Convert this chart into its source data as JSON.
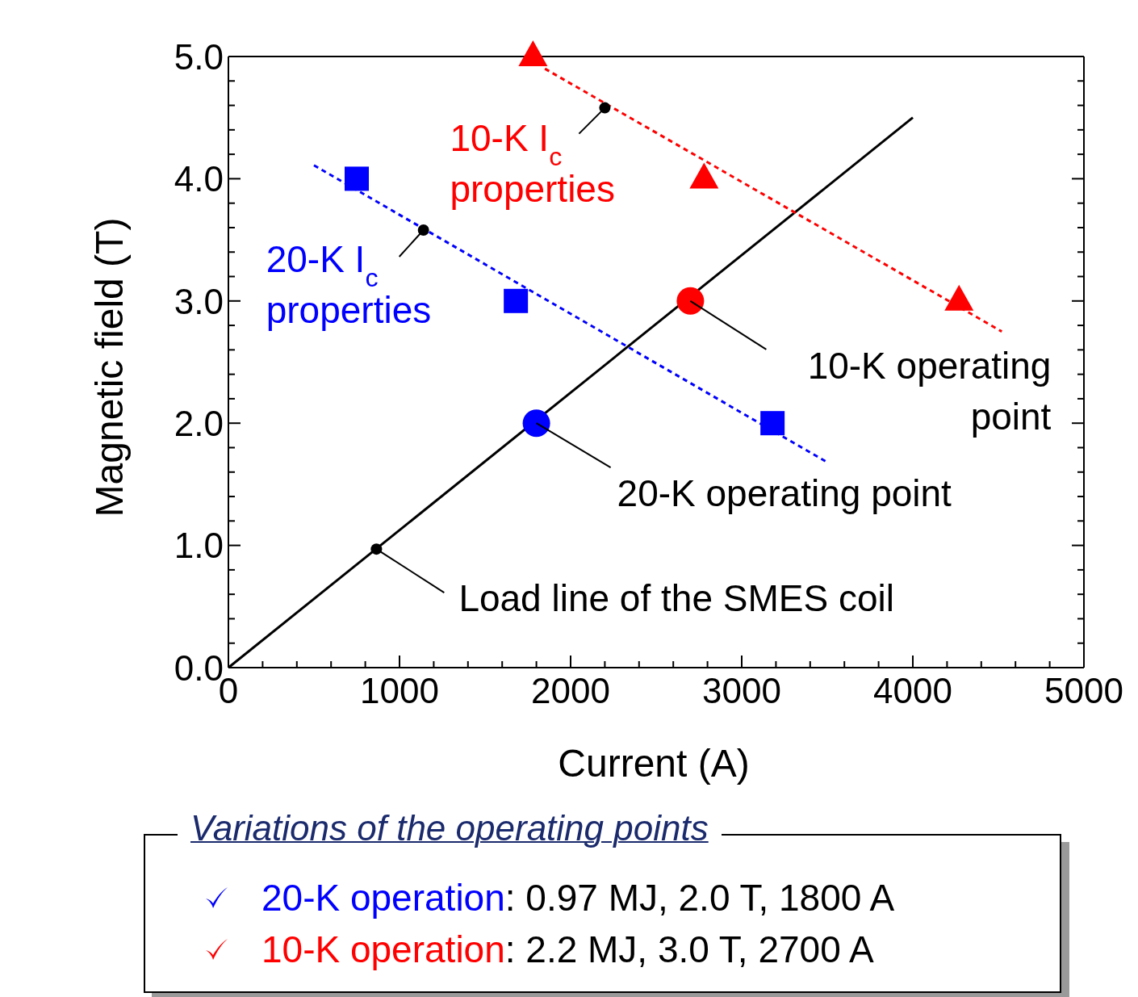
{
  "chart_data": {
    "type": "scatter",
    "xlabel": "Current (A)",
    "ylabel": "Magnetic field (T)",
    "xlim": [
      0,
      5000
    ],
    "ylim": [
      0,
      5
    ],
    "xticks": [
      0,
      {
        "value": 200,
        "label": null
      },
      {
        "value": 400,
        "label": null
      },
      {
        "value": 600,
        "label": null
      },
      {
        "value": 800,
        "label": null
      },
      1000,
      {
        "value": 1200,
        "label": null
      },
      {
        "value": 1400,
        "label": null
      },
      {
        "value": 1600,
        "label": null
      },
      {
        "value": 1800,
        "label": null
      },
      2000,
      {
        "value": 2200,
        "label": null
      },
      {
        "value": 2400,
        "label": null
      },
      {
        "value": 2600,
        "label": null
      },
      {
        "value": 2800,
        "label": null
      },
      3000,
      {
        "value": 3200,
        "label": null
      },
      {
        "value": 3400,
        "label": null
      },
      {
        "value": 3600,
        "label": null
      },
      {
        "value": 3800,
        "label": null
      },
      4000,
      {
        "value": 4200,
        "label": null
      },
      {
        "value": 4400,
        "label": null
      },
      {
        "value": 4600,
        "label": null
      },
      {
        "value": 4800,
        "label": null
      },
      5000
    ],
    "yticks": [
      {
        "value": 0,
        "label": "0.0"
      },
      {
        "value": 0.2,
        "label": null
      },
      {
        "value": 0.4,
        "label": null
      },
      {
        "value": 0.6,
        "label": null
      },
      {
        "value": 0.8,
        "label": null
      },
      {
        "value": 1,
        "label": "1.0"
      },
      {
        "value": 1.2,
        "label": null
      },
      {
        "value": 1.4,
        "label": null
      },
      {
        "value": 1.6,
        "label": null
      },
      {
        "value": 1.8,
        "label": null
      },
      {
        "value": 2,
        "label": "2.0"
      },
      {
        "value": 2.2,
        "label": null
      },
      {
        "value": 2.4,
        "label": null
      },
      {
        "value": 2.6,
        "label": null
      },
      {
        "value": 2.8,
        "label": null
      },
      {
        "value": 3,
        "label": "3.0"
      },
      {
        "value": 3.2,
        "label": null
      },
      {
        "value": 3.4,
        "label": null
      },
      {
        "value": 3.6,
        "label": null
      },
      {
        "value": 3.8,
        "label": null
      },
      {
        "value": 4,
        "label": "4.0"
      },
      {
        "value": 4.2,
        "label": null
      },
      {
        "value": 4.4,
        "label": null
      },
      {
        "value": 4.6,
        "label": null
      },
      {
        "value": 4.8,
        "label": null
      },
      {
        "value": 5,
        "label": "5.0"
      }
    ],
    "series": [
      {
        "type": "line",
        "color": "#000000",
        "x": [
          0,
          4000
        ],
        "values": [
          0,
          4.5
        ],
        "line_style": "solid",
        "marker": "none"
      },
      {
        "type": "line",
        "color": "#0000ff",
        "x": [
          500,
          3500
        ],
        "values": [
          4.11,
          1.68
        ],
        "line_style": "dotted",
        "marker": "none"
      },
      {
        "type": "line",
        "color": "#ff0000",
        "x": [
          1850,
          4520
        ],
        "values": [
          4.9,
          2.75
        ],
        "line_style": "dotted",
        "marker": "none"
      },
      {
        "color": "#0000ff",
        "x": [
          750,
          1680,
          3180
        ],
        "values": [
          4.0,
          3.0,
          2.0
        ],
        "marker": "square"
      },
      {
        "color": "#ff0000",
        "x": [
          1780,
          2780,
          4270
        ],
        "values": [
          5.0,
          4.0,
          3.0
        ],
        "marker": "triangle"
      },
      {
        "color": "#0000ff",
        "x": [
          1800
        ],
        "values": [
          2.0
        ],
        "marker": "circle"
      },
      {
        "color": "#ff0000",
        "x": [
          2700
        ],
        "values": [
          3.0
        ],
        "marker": "circle"
      }
    ],
    "annotations": [
      {
        "text": "10-K I$_{c}$ properties",
        "x": 2200,
        "y": 4.58
      },
      {
        "text": "20-K I$_{c}$ properties",
        "x": 1140,
        "y": 3.58
      },
      {
        "text": "10-K operating point",
        "x": 2700,
        "y": 3.0
      },
      {
        "text": "20-K operating point",
        "x": 1800,
        "y": 2.0
      },
      {
        "text": "Load line of the SMES coil",
        "x": 865,
        "y": 0.97
      },
      "Variations of the operating points",
      "20-K operation: 0.97 MJ, 2.0 T, 1800 A",
      "10-K operation: 2.2 MJ, 3.0 T, 2700 A"
    ]
  }
}
